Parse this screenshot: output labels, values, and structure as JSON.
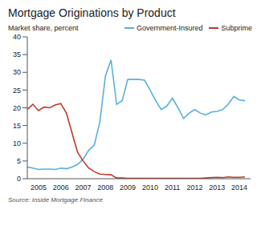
{
  "chart_data": {
    "type": "line",
    "title": "Mortgage Originations by Product",
    "y_label": "Market share, percent",
    "source": "Source: Inside Mortgage Finance",
    "x": [
      2005,
      2005.25,
      2005.5,
      2005.75,
      2006,
      2006.25,
      2006.5,
      2006.75,
      2007,
      2007.25,
      2007.5,
      2007.75,
      2008,
      2008.25,
      2008.5,
      2008.75,
      2009,
      2009.25,
      2009.5,
      2009.75,
      2010,
      2010.25,
      2010.5,
      2010.75,
      2011,
      2011.25,
      2011.5,
      2011.75,
      2012,
      2012.25,
      2012.5,
      2012.75,
      2013,
      2013.25,
      2013.5,
      2013.75,
      2014,
      2014.25,
      2014.5,
      2014.75
    ],
    "series": [
      {
        "name": "Government-Insured",
        "color": "#5aaee0",
        "values": [
          3.3,
          3.0,
          2.6,
          2.7,
          2.7,
          2.6,
          3.0,
          2.8,
          3.3,
          4.0,
          5.5,
          8.0,
          9.5,
          16,
          29,
          33.5,
          21,
          22,
          28,
          28,
          28,
          27.8,
          25,
          22,
          19.5,
          20.5,
          22.7,
          20,
          17,
          18.5,
          19.5,
          18.5,
          18,
          18.8,
          19,
          19.5,
          21,
          23.2,
          22.2,
          22
        ]
      },
      {
        "name": "Subprime",
        "color": "#c0392b",
        "values": [
          19.5,
          21,
          19.2,
          20.2,
          20,
          20.8,
          21.2,
          18.5,
          13,
          7.5,
          5,
          3,
          2,
          1.3,
          1.2,
          1.1,
          0.2,
          0.2,
          0.1,
          0.1,
          0.1,
          0.1,
          0.1,
          0.1,
          0.1,
          0.1,
          0.1,
          0.1,
          0.1,
          0.1,
          0.1,
          0.1,
          0.2,
          0.3,
          0.4,
          0.3,
          0.5,
          0.4,
          0.4,
          0.5
        ]
      }
    ],
    "xlim": [
      2005,
      2015
    ],
    "xticks": [
      {
        "value": 2005.5,
        "label": "2005"
      },
      {
        "value": 2006.5,
        "label": "2006"
      },
      {
        "value": 2007.5,
        "label": "2007"
      },
      {
        "value": 2008.5,
        "label": "2008"
      },
      {
        "value": 2009.5,
        "label": "2009"
      },
      {
        "value": 2010.5,
        "label": "2010"
      },
      {
        "value": 2011.5,
        "label": "2011"
      },
      {
        "value": 2012.5,
        "label": "2012"
      },
      {
        "value": 2013.5,
        "label": "2013"
      },
      {
        "value": 2014.5,
        "label": "2014"
      }
    ],
    "ylim": [
      0,
      40
    ],
    "yticks": [
      0,
      5,
      10,
      15,
      20,
      25,
      30,
      35,
      40
    ],
    "grid": false,
    "legend": "top-right"
  }
}
